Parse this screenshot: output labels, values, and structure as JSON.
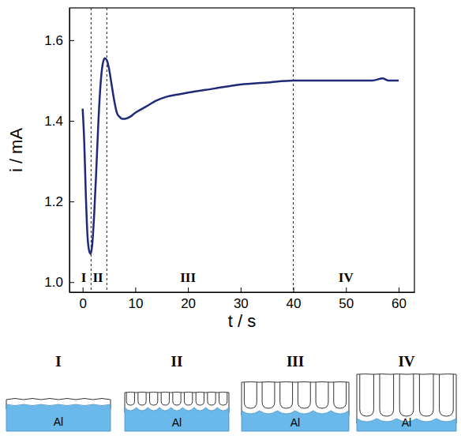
{
  "chart_data": {
    "type": "line",
    "xlabel": "t / s",
    "ylabel": "i / mA",
    "x": [
      0,
      0.3,
      0.6,
      0.9,
      1.2,
      1.5,
      1.8,
      2.2,
      2.6,
      3.0,
      3.4,
      3.8,
      4.2,
      4.6,
      5.0,
      5.5,
      6.0,
      6.5,
      7.0,
      7.5,
      8,
      9,
      10,
      12,
      14,
      16,
      18,
      20,
      25,
      30,
      35,
      40,
      45,
      50,
      55,
      57,
      58,
      60
    ],
    "values": [
      1.43,
      1.35,
      1.22,
      1.12,
      1.08,
      1.07,
      1.09,
      1.17,
      1.28,
      1.4,
      1.49,
      1.54,
      1.555,
      1.55,
      1.53,
      1.49,
      1.45,
      1.42,
      1.41,
      1.405,
      1.405,
      1.41,
      1.42,
      1.435,
      1.45,
      1.46,
      1.465,
      1.47,
      1.48,
      1.49,
      1.495,
      1.5,
      1.5,
      1.5,
      1.5,
      1.505,
      1.5,
      1.5
    ],
    "color": "#1f2a78",
    "xlim": [
      -2.5,
      63
    ],
    "ylim": [
      0.975,
      1.68
    ],
    "xticks": [
      0,
      10,
      20,
      30,
      40,
      50,
      60
    ],
    "yticks": [
      {
        "value": 1.0,
        "label": "1.0"
      },
      {
        "value": 1.2,
        "label": "1.2"
      },
      {
        "value": 1.4,
        "label": "1.4"
      },
      {
        "value": 1.6,
        "label": "1.6"
      }
    ],
    "vlines": [
      1.6,
      4.6,
      40
    ],
    "annotations": [
      {
        "text": "I",
        "x": 0.2,
        "y": 1.0
      },
      {
        "text": "II",
        "x": 2.9,
        "y": 1.0
      },
      {
        "text": "III",
        "x": 20,
        "y": 1.0
      },
      {
        "text": "IV",
        "x": 50,
        "y": 1.0
      }
    ],
    "grid": false
  },
  "diagram": {
    "panels": [
      {
        "label": "I",
        "metal": "Al"
      },
      {
        "label": "II",
        "metal": "Al"
      },
      {
        "label": "III",
        "metal": "Al"
      },
      {
        "label": "IV",
        "metal": "Al"
      }
    ]
  }
}
